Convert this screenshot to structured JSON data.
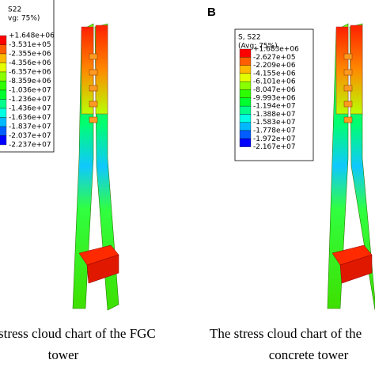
{
  "panels": [
    {
      "legend": {
        "title": "S22",
        "subtitle": "vg: 75%)",
        "values": [
          "+1.648e+06",
          "-3.531e+05",
          "-2.355e+06",
          "-4.356e+06",
          "-6.357e+06",
          "-8.359e+06",
          "-1.036e+07",
          "-1.236e+07",
          "-1.436e+07",
          "-1.636e+07",
          "-1.837e+07",
          "-2.037e+07",
          "-2.237e+07"
        ]
      },
      "caption": [
        "stress cloud chart of the FGC",
        "tower"
      ]
    },
    {
      "label": "B",
      "legend": {
        "title": "S, S22",
        "subtitle": "(Avg: 75%)",
        "values": [
          "+1.683e+06",
          "-2.627e+05",
          "-2.209e+06",
          "-4.155e+06",
          "-6.101e+06",
          "-8.047e+06",
          "-9.993e+06",
          "-1.194e+07",
          "-1.388e+07",
          "-1.583e+07",
          "-1.778e+07",
          "-1.972e+07",
          "-2.167e+07"
        ]
      },
      "caption": [
        "The stress cloud chart of the",
        "concrete tower"
      ]
    }
  ]
}
